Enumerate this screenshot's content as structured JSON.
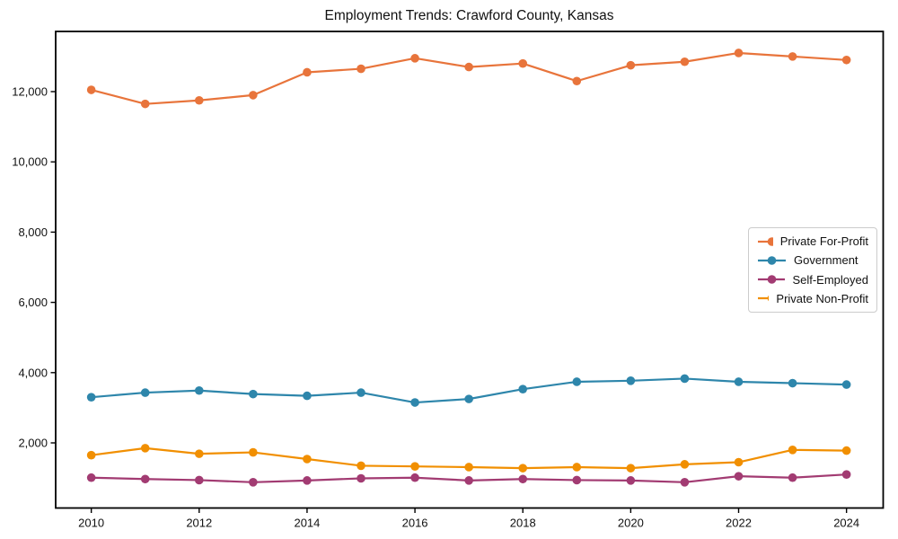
{
  "page": {
    "background": "#ffffff",
    "text_color": "#111111"
  },
  "chart_data": {
    "type": "line",
    "title": "Employment Trends: Crawford County, Kansas",
    "xlabel": "",
    "ylabel": "",
    "x": [
      2010,
      2011,
      2012,
      2013,
      2014,
      2015,
      2016,
      2017,
      2018,
      2019,
      2020,
      2021,
      2022,
      2023,
      2024
    ],
    "series": [
      {
        "name": "Private For-Profit",
        "color": "#E8743B",
        "values": [
          12050,
          11650,
          11750,
          11900,
          12550,
          12650,
          12950,
          12700,
          12800,
          12300,
          12750,
          12850,
          13100,
          13000,
          12900
        ]
      },
      {
        "name": "Government",
        "color": "#2E86AB",
        "values": [
          3300,
          3430,
          3490,
          3390,
          3340,
          3430,
          3150,
          3250,
          3530,
          3740,
          3770,
          3830,
          3740,
          3700,
          3660
        ]
      },
      {
        "name": "Self-Employed",
        "color": "#A23B72",
        "values": [
          1010,
          970,
          940,
          880,
          930,
          990,
          1010,
          930,
          970,
          940,
          930,
          880,
          1050,
          1010,
          1100
        ]
      },
      {
        "name": "Private Non-Profit",
        "color": "#F18F01",
        "values": [
          1650,
          1850,
          1690,
          1730,
          1540,
          1350,
          1330,
          1310,
          1280,
          1310,
          1280,
          1390,
          1450,
          1800,
          1780
        ]
      }
    ],
    "xlim": [
      2009.34,
      2024.68
    ],
    "ylim": [
      146,
      13713
    ],
    "xticks": [
      2010,
      2012,
      2014,
      2016,
      2018,
      2020,
      2022,
      2024
    ],
    "xtick_labels": [
      "2010",
      "2012",
      "2014",
      "2016",
      "2018",
      "2020",
      "2022",
      "2024"
    ],
    "yticks": [
      2000,
      4000,
      6000,
      8000,
      10000,
      12000
    ],
    "ytick_labels": [
      "2,000",
      "4,000",
      "6,000",
      "8,000",
      "10,000",
      "12,000"
    ],
    "grid": false,
    "marker": "circle",
    "legend_position": "center-right"
  }
}
